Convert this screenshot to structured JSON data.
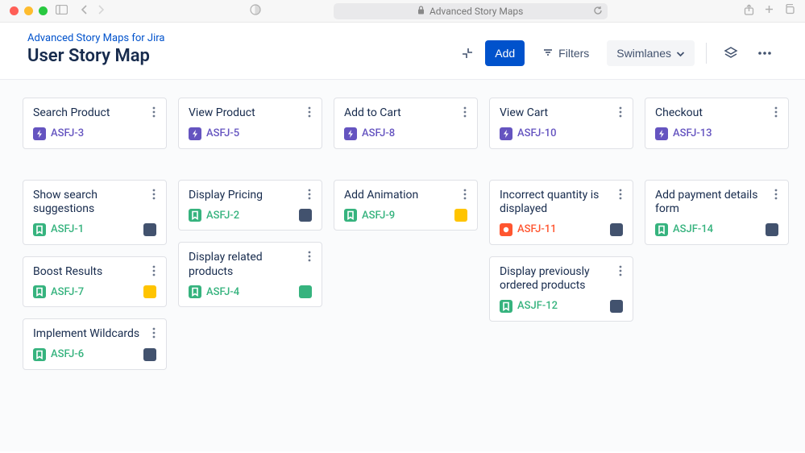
{
  "browser": {
    "url_label": "Advanced Story Maps",
    "traffic_colors": [
      "#ff5f57",
      "#febc2e",
      "#28c840"
    ]
  },
  "header": {
    "breadcrumb": "Advanced Story Maps for Jira",
    "title": "User Story Map",
    "add_label": "Add",
    "filters_label": "Filters",
    "swimlanes_label": "Swimlanes"
  },
  "issue_types": {
    "epic": {
      "bg": "#6554c0",
      "key_color": "#6554c0"
    },
    "story": {
      "bg": "#36b37e",
      "key_color": "#36b37e"
    },
    "bug": {
      "bg": "#ff5630",
      "key_color": "#ff5630"
    }
  },
  "status_colors": {
    "grey": "#42526e",
    "yellow": "#ffc400",
    "green": "#36b37e"
  },
  "columns": [
    {
      "epic": {
        "title": "Search Product",
        "key": "ASFJ-3",
        "type": "epic"
      },
      "cards": [
        {
          "title": "Show search suggestions",
          "key": "ASFJ-1",
          "type": "story",
          "status": "grey"
        },
        {
          "title": "Boost Results",
          "key": "ASFJ-7",
          "type": "story",
          "status": "yellow"
        },
        {
          "title": "Implement Wildcards",
          "key": "ASFJ-6",
          "type": "story",
          "status": "grey"
        }
      ]
    },
    {
      "epic": {
        "title": "View Product",
        "key": "ASFJ-5",
        "type": "epic"
      },
      "cards": [
        {
          "title": "Display Pricing",
          "key": "ASFJ-2",
          "type": "story",
          "status": "grey"
        },
        {
          "title": "Display related products",
          "key": "ASFJ-4",
          "type": "story",
          "status": "green"
        }
      ]
    },
    {
      "epic": {
        "title": "Add to Cart",
        "key": "ASFJ-8",
        "type": "epic"
      },
      "cards": [
        {
          "title": "Add Animation",
          "key": "ASFJ-9",
          "type": "story",
          "status": "yellow"
        }
      ]
    },
    {
      "epic": {
        "title": "View Cart",
        "key": "ASFJ-10",
        "type": "epic"
      },
      "cards": [
        {
          "title": "Incorrect quantity is displayed",
          "key": "ASFJ-11",
          "type": "bug",
          "status": "grey"
        },
        {
          "title": "Display previously ordered products",
          "key": "ASJF-12",
          "type": "story",
          "status": "grey"
        }
      ]
    },
    {
      "epic": {
        "title": "Checkout",
        "key": "ASFJ-13",
        "type": "epic"
      },
      "cards": [
        {
          "title": "Add payment details form",
          "key": "ASJF-14",
          "type": "story",
          "status": "grey"
        }
      ]
    }
  ]
}
